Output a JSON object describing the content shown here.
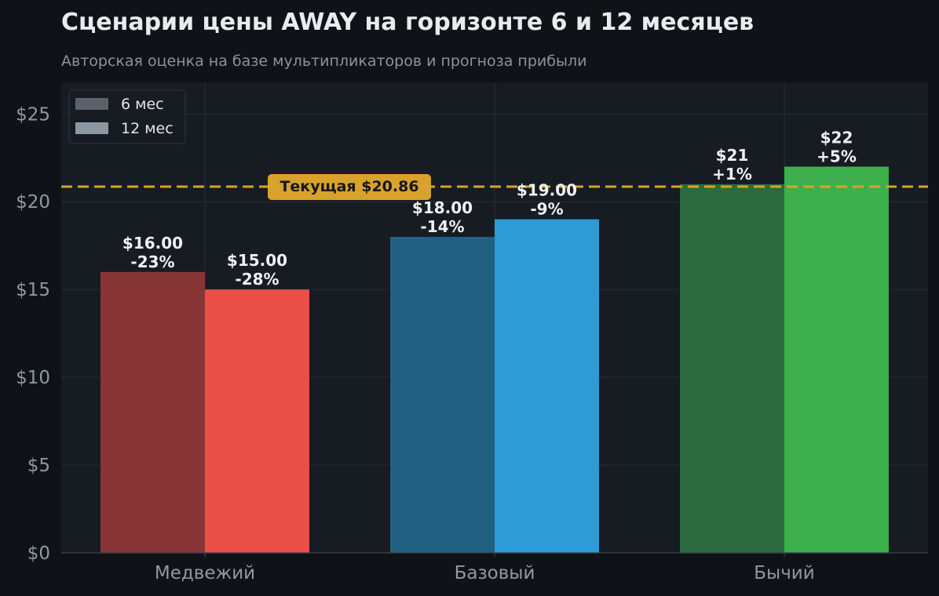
{
  "chart_data": {
    "type": "bar",
    "title": "Сценарии цены AWAY на горизонте 6 и 12 месяцев",
    "subtitle": "Авторская оценка на базе мультипликаторов и прогноза прибыли",
    "categories": [
      "Медвежий",
      "Базовый",
      "Бычий"
    ],
    "series": [
      {
        "name": "6 мес",
        "values": [
          16.0,
          18.0,
          21.0
        ],
        "labels": [
          "$16.00",
          "$18.00",
          "$21"
        ],
        "pct_labels": [
          "-23%",
          "-14%",
          "+1%"
        ],
        "colors": [
          "#883538",
          "#226082",
          "#2b6b3d"
        ]
      },
      {
        "name": "12 мес",
        "values": [
          15.0,
          19.0,
          22.0
        ],
        "labels": [
          "$15.00",
          "$19.00",
          "$22"
        ],
        "pct_labels": [
          "-28%",
          "-9%",
          "+5%"
        ],
        "colors": [
          "#ea4f48",
          "#2c9bd6",
          "#3db04d"
        ]
      }
    ],
    "reference_line": {
      "value": 20.86,
      "label": "Текущая $20.86",
      "color": "#d9a22a"
    },
    "ylim": [
      0,
      26.8
    ],
    "yticks": [
      0,
      5,
      10,
      15,
      20,
      25
    ],
    "ytick_labels": [
      "$0",
      "$5",
      "$10",
      "$15",
      "$20",
      "$25"
    ],
    "legend_position": "top-left",
    "legend_swatch_colors": [
      "#5a616b",
      "#8e98a3"
    ],
    "grid": true,
    "xlabel": "",
    "ylabel": ""
  }
}
